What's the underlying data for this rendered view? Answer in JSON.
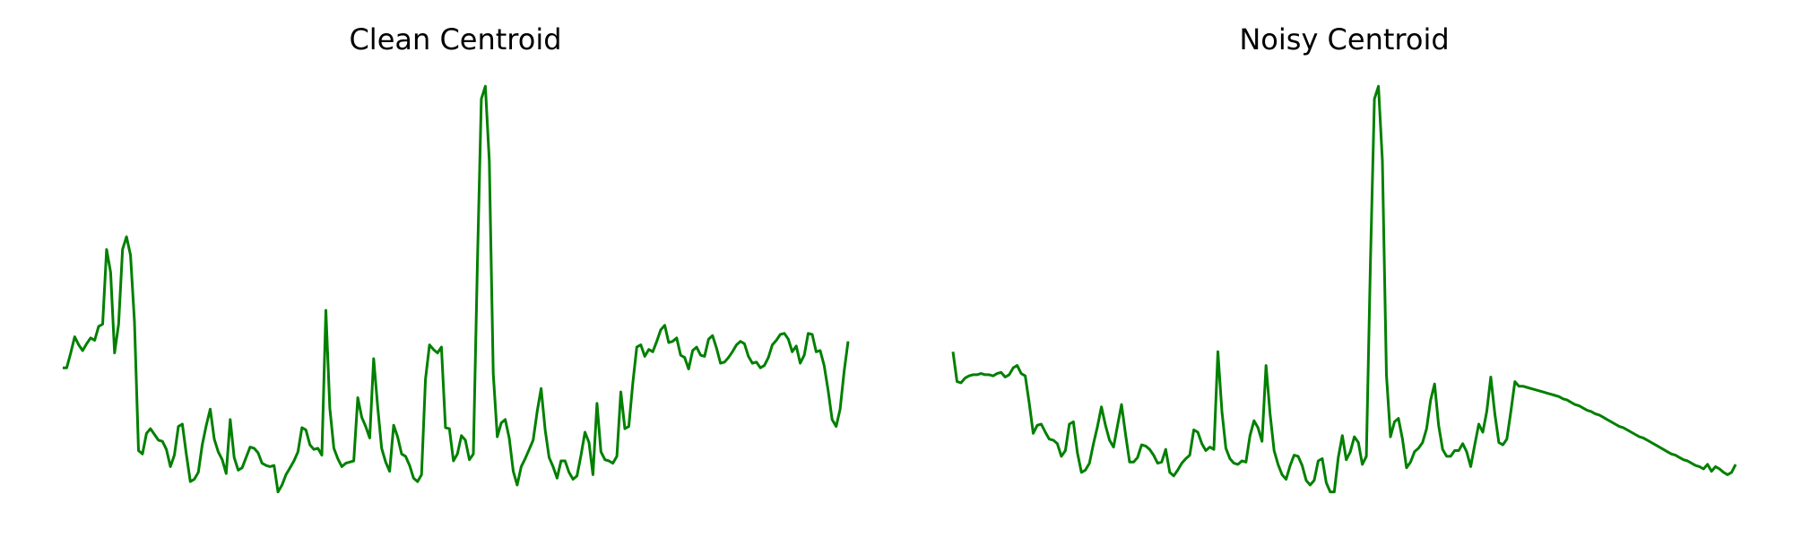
{
  "chart_data": [
    {
      "type": "line",
      "title": "Clean Centroid",
      "color": "#008000",
      "ylim": [
        0,
        380
      ],
      "values": [
        120,
        120,
        133,
        147,
        140,
        135,
        141,
        146,
        144,
        156,
        158,
        223,
        203,
        133,
        158,
        223,
        234,
        218,
        160,
        48,
        45,
        63,
        67,
        62,
        57,
        56,
        49,
        34,
        44,
        69,
        71,
        45,
        21,
        23,
        29,
        53,
        70,
        84,
        58,
        47,
        40,
        28,
        75,
        42,
        31,
        33,
        42,
        51,
        50,
        46,
        37,
        35,
        34,
        35,
        12,
        18,
        27,
        33,
        39,
        47,
        68,
        66,
        53,
        49,
        50,
        44,
        170,
        85,
        50,
        41,
        34,
        37,
        38,
        39,
        94,
        77,
        69,
        59,
        128,
        86,
        50,
        38,
        30,
        70,
        60,
        45,
        43,
        35,
        24,
        21,
        27,
        110,
        140,
        136,
        133,
        138,
        68,
        67,
        39,
        45,
        61,
        57,
        40,
        45,
        210,
        354,
        365,
        300,
        115,
        60,
        72,
        75,
        59,
        30,
        18,
        34,
        41,
        49,
        57,
        82,
        102,
        66,
        42,
        34,
        24,
        39,
        39,
        29,
        23,
        26,
        44,
        64,
        55,
        27,
        89,
        47,
        40,
        39,
        37,
        43,
        99,
        67,
        69,
        107,
        138,
        140,
        130,
        136,
        134,
        143,
        153,
        157,
        142,
        143,
        146,
        131,
        129,
        119,
        135,
        138,
        131,
        130,
        145,
        148,
        137,
        124,
        125,
        129,
        134,
        140,
        143,
        141,
        130,
        124,
        125,
        120,
        122,
        129,
        140,
        144,
        149,
        150,
        145,
        134,
        139,
        124,
        131,
        150,
        149,
        134,
        135,
        122,
        100,
        75,
        69,
        84,
        117,
        143
      ]
    },
    {
      "type": "line",
      "title": "Noisy Centroid",
      "color": "#008000",
      "ylim": [
        0,
        380
      ],
      "values": [
        134,
        108,
        107,
        111,
        113,
        114,
        114,
        115,
        114,
        114,
        113,
        115,
        116,
        112,
        114,
        120,
        122,
        115,
        113,
        89,
        63,
        70,
        71,
        64,
        58,
        57,
        54,
        43,
        48,
        71,
        73,
        46,
        29,
        31,
        37,
        54,
        69,
        86,
        70,
        57,
        51,
        70,
        88,
        62,
        38,
        38,
        42,
        53,
        52,
        49,
        44,
        37,
        38,
        49,
        29,
        26,
        31,
        37,
        41,
        44,
        66,
        64,
        54,
        48,
        51,
        49,
        134,
        82,
        50,
        41,
        37,
        36,
        39,
        38,
        61,
        74,
        68,
        56,
        122,
        80,
        48,
        36,
        27,
        23,
        35,
        44,
        43,
        35,
        22,
        18,
        22,
        39,
        41,
        20,
        12,
        12,
        42,
        61,
        40,
        47,
        60,
        55,
        36,
        43,
        210,
        354,
        365,
        300,
        114,
        60,
        73,
        76,
        58,
        33,
        38,
        47,
        50,
        55,
        67,
        92,
        106,
        70,
        49,
        43,
        43,
        48,
        48,
        54,
        47,
        34,
        53,
        71,
        64,
        82,
        112,
        80,
        55,
        53,
        58,
        82,
        108,
        104,
        104,
        103,
        102,
        101,
        100,
        99,
        98,
        97,
        96,
        95,
        93,
        92,
        90,
        88,
        87,
        85,
        83,
        82,
        80,
        79,
        77,
        75,
        73,
        71,
        69,
        68,
        66,
        64,
        62,
        60,
        59,
        57,
        55,
        53,
        51,
        49,
        47,
        45,
        44,
        42,
        40,
        39,
        37,
        35,
        34,
        32,
        36,
        30,
        34,
        32,
        29,
        27,
        29,
        36
      ]
    }
  ]
}
